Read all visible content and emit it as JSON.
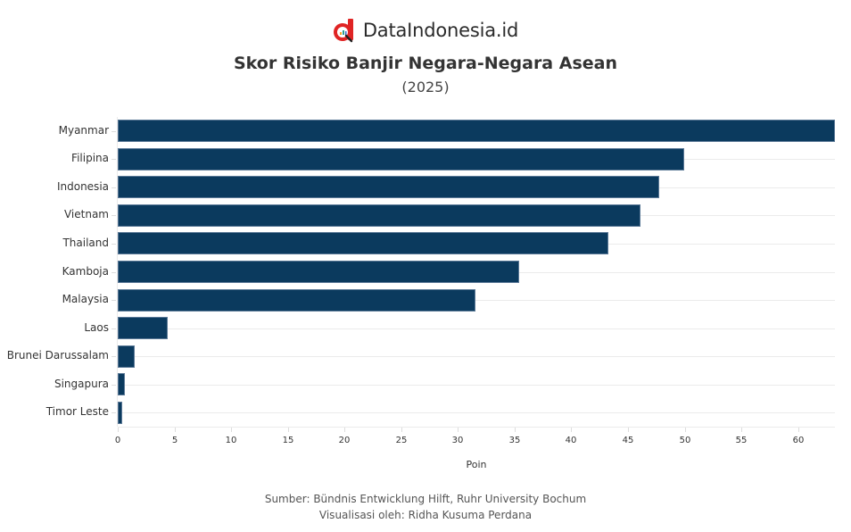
{
  "brand": {
    "name": "DataIndonesia.id",
    "icon": "magnifier-chart-logo-icon",
    "accent": "#e02424"
  },
  "header": {
    "title": "Skor Risiko Banjir Negara-Negara Asean",
    "subtitle": "(2025)"
  },
  "footer": {
    "source": "Sumber: Bündnis Entwicklung Hilft, Ruhr University Bochum",
    "credit": "Visualisasi oleh: Ridha Kusuma Perdana"
  },
  "colors": {
    "bar": "#0b3a5e",
    "grid": "#ebebeb"
  },
  "chart_data": {
    "type": "bar",
    "orientation": "horizontal",
    "title": "Skor Risiko Banjir Negara-Negara Asean",
    "subtitle": "(2025)",
    "xlabel": "Poin",
    "ylabel": "",
    "categories": [
      "Myanmar",
      "Filipina",
      "Indonesia",
      "Vietnam",
      "Thailand",
      "Kamboja",
      "Malaysia",
      "Laos",
      "Brunei Darussalam",
      "Singapura",
      "Timor Leste"
    ],
    "values": [
      63.3,
      50.0,
      47.8,
      46.1,
      43.3,
      35.4,
      31.6,
      4.4,
      1.5,
      0.6,
      0.4
    ],
    "xlim": [
      0,
      63.3
    ],
    "xticks": [
      0,
      5,
      10,
      15,
      20,
      25,
      30,
      35,
      40,
      45,
      50,
      55,
      60
    ],
    "grid": true,
    "legend": "none"
  }
}
